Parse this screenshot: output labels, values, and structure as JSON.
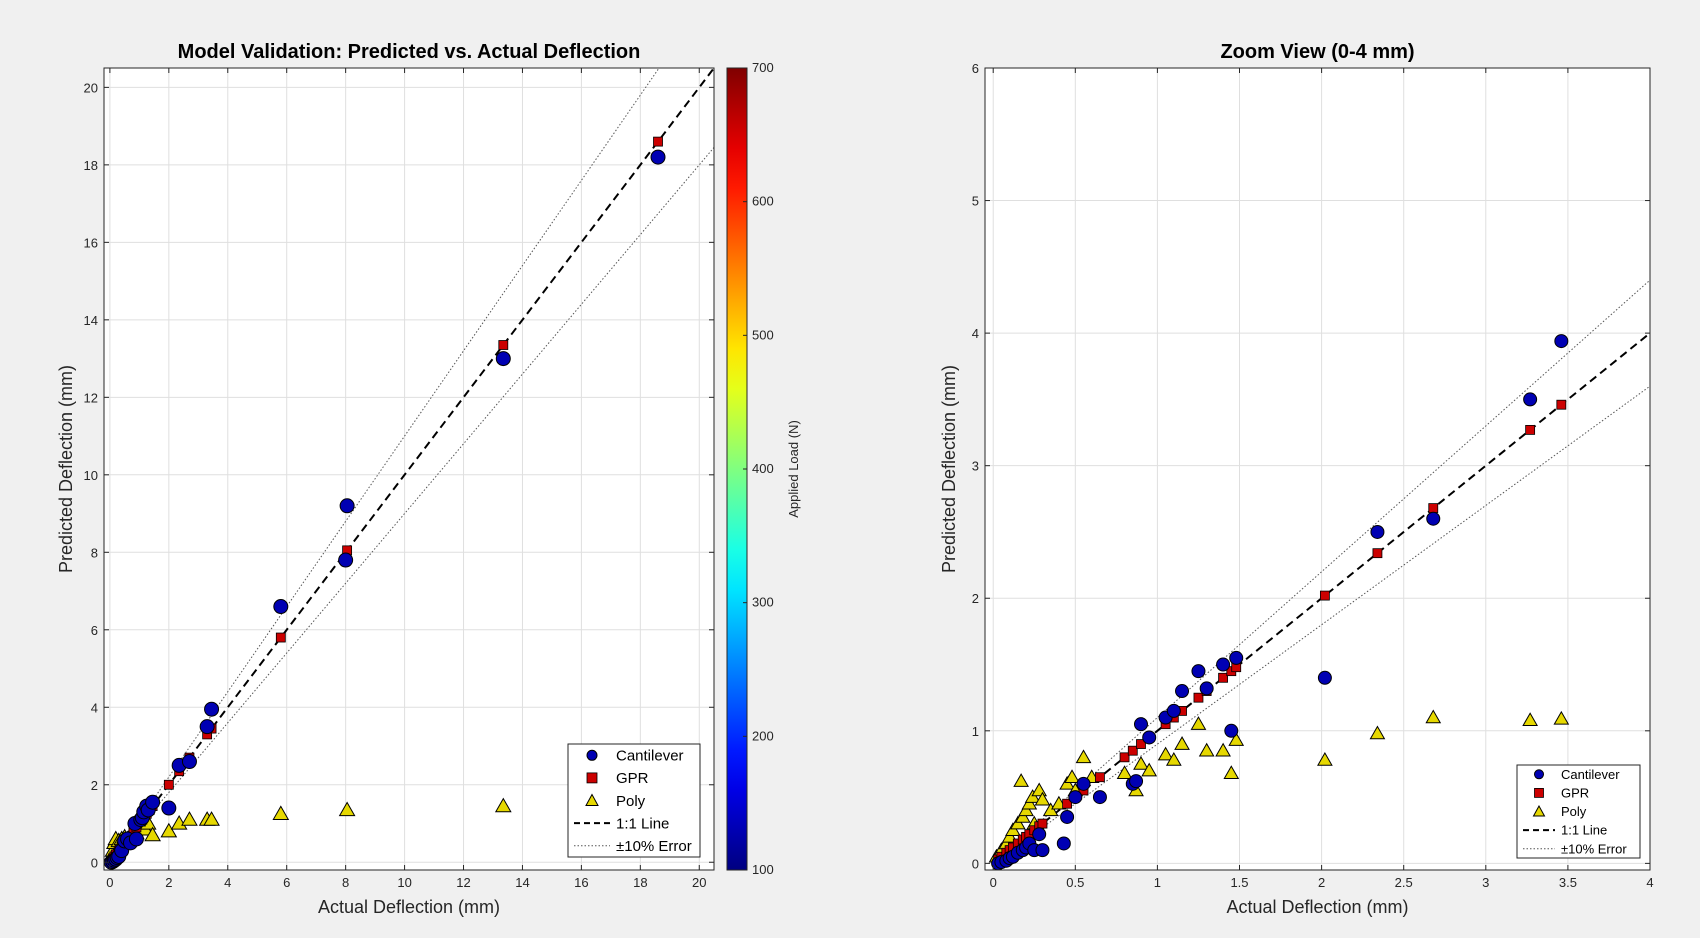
{
  "colors": {
    "figure_bg": "#f0f0f0",
    "axes_bg": "#ffffff",
    "grid": "#dfdfdf",
    "cantilever": "#0000b3",
    "gpr": "#cc0000",
    "poly": "#e6d800",
    "marker_edge": "#000000"
  },
  "colorbar": {
    "label": "Applied Load (N)",
    "ticks": [
      "100",
      "200",
      "300",
      "400",
      "500",
      "600",
      "700"
    ]
  },
  "chart_data": [
    {
      "type": "scatter",
      "title": "Model Validation: Predicted vs. Actual Deflection",
      "xlabel": "Actual Deflection (mm)",
      "ylabel": "Predicted Deflection (mm)",
      "xlim": [
        -0.2,
        20.5
      ],
      "ylim": [
        -0.2,
        20.5
      ],
      "xticks": [
        0,
        2,
        4,
        6,
        8,
        10,
        12,
        14,
        16,
        18,
        20
      ],
      "yticks": [
        0,
        2,
        4,
        6,
        8,
        10,
        12,
        14,
        16,
        18,
        20
      ],
      "grid": true,
      "legend_position": "bottom-right",
      "legend_entries": [
        "Cantilever",
        "GPR",
        "Poly",
        "1:1 Line",
        "±10% Error"
      ],
      "series": [
        {
          "name": "Cantilever",
          "marker": "circle",
          "x": [
            0.05,
            0.1,
            0.15,
            0.2,
            0.25,
            0.3,
            0.4,
            0.5,
            0.6,
            0.7,
            0.85,
            0.9,
            1.05,
            1.1,
            1.15,
            1.25,
            1.3,
            1.45,
            2.0,
            2.35,
            2.7,
            3.3,
            3.45,
            5.8,
            8.0,
            8.05,
            13.35,
            18.6
          ],
          "y": [
            0.0,
            0.02,
            0.05,
            0.08,
            0.12,
            0.15,
            0.3,
            0.55,
            0.6,
            0.5,
            1.0,
            0.6,
            1.1,
            1.15,
            1.3,
            1.45,
            1.35,
            1.55,
            1.4,
            2.5,
            2.6,
            3.5,
            3.95,
            6.6,
            7.8,
            9.2,
            13.0,
            18.2
          ]
        },
        {
          "name": "GPR",
          "marker": "square",
          "x": [
            0.05,
            0.1,
            0.15,
            0.2,
            0.3,
            0.4,
            0.5,
            0.6,
            0.8,
            0.9,
            1.05,
            1.1,
            1.25,
            1.35,
            1.45,
            2.0,
            2.35,
            2.7,
            3.3,
            3.45,
            5.8,
            8.05,
            13.35,
            18.6
          ],
          "y": [
            0.05,
            0.1,
            0.15,
            0.2,
            0.3,
            0.4,
            0.5,
            0.6,
            0.8,
            0.9,
            1.05,
            1.1,
            1.25,
            1.35,
            1.45,
            2.0,
            2.35,
            2.7,
            3.3,
            3.45,
            5.8,
            8.05,
            13.35,
            18.6
          ]
        },
        {
          "name": "Poly",
          "marker": "triangle",
          "x": [
            0.05,
            0.1,
            0.15,
            0.2,
            0.25,
            0.3,
            0.35,
            0.4,
            0.5,
            0.6,
            0.7,
            0.8,
            0.9,
            1.0,
            1.1,
            1.2,
            1.3,
            1.45,
            2.0,
            2.35,
            2.7,
            3.3,
            3.45,
            5.8,
            8.05,
            13.35
          ],
          "y": [
            0.1,
            0.3,
            0.5,
            0.6,
            0.3,
            0.55,
            0.45,
            0.6,
            0.65,
            0.6,
            0.7,
            0.7,
            0.75,
            0.85,
            0.9,
            0.85,
            1.0,
            0.7,
            0.8,
            1.0,
            1.1,
            1.1,
            1.1,
            1.25,
            1.35,
            1.45
          ]
        }
      ]
    },
    {
      "type": "scatter",
      "title": "Zoom View (0-4 mm)",
      "xlabel": "Actual Deflection (mm)",
      "ylabel": "Predicted Deflection (mm)",
      "xlim": [
        -0.05,
        4
      ],
      "ylim": [
        -0.05,
        6
      ],
      "xticks": [
        0,
        0.5,
        1,
        1.5,
        2,
        2.5,
        3,
        3.5,
        4
      ],
      "yticks": [
        0,
        1,
        2,
        3,
        4,
        5,
        6
      ],
      "grid": true,
      "legend_position": "bottom-right",
      "legend_entries": [
        "Cantilever",
        "GPR",
        "Poly",
        "1:1 Line",
        "±10% Error"
      ],
      "series": [
        {
          "name": "Cantilever",
          "marker": "circle",
          "x": [
            0.03,
            0.05,
            0.08,
            0.1,
            0.12,
            0.15,
            0.18,
            0.2,
            0.22,
            0.25,
            0.28,
            0.3,
            0.43,
            0.45,
            0.5,
            0.55,
            0.65,
            0.85,
            0.87,
            0.9,
            0.95,
            1.05,
            1.1,
            1.15,
            1.25,
            1.3,
            1.4,
            1.45,
            1.48,
            2.02,
            2.34,
            2.68,
            3.27,
            3.46
          ],
          "y": [
            0.0,
            0.01,
            0.02,
            0.04,
            0.05,
            0.08,
            0.1,
            0.12,
            0.15,
            0.1,
            0.22,
            0.1,
            0.15,
            0.35,
            0.5,
            0.6,
            0.5,
            0.6,
            0.62,
            1.05,
            0.95,
            1.1,
            1.15,
            1.3,
            1.45,
            1.32,
            1.5,
            1.0,
            1.55,
            1.4,
            2.5,
            2.6,
            3.5,
            3.94
          ]
        },
        {
          "name": "GPR",
          "marker": "square",
          "x": [
            0.03,
            0.05,
            0.08,
            0.1,
            0.12,
            0.15,
            0.18,
            0.2,
            0.22,
            0.25,
            0.28,
            0.3,
            0.45,
            0.55,
            0.65,
            0.8,
            0.85,
            0.9,
            1.05,
            1.1,
            1.15,
            1.25,
            1.3,
            1.4,
            1.45,
            1.48,
            2.02,
            2.34,
            2.68,
            3.27,
            3.46
          ],
          "y": [
            0.03,
            0.05,
            0.08,
            0.1,
            0.12,
            0.15,
            0.18,
            0.2,
            0.22,
            0.25,
            0.28,
            0.3,
            0.45,
            0.55,
            0.65,
            0.8,
            0.85,
            0.9,
            1.05,
            1.1,
            1.15,
            1.25,
            1.3,
            1.4,
            1.45,
            1.48,
            2.02,
            2.34,
            2.68,
            3.27,
            3.46
          ],
          "c_note": ""
        },
        {
          "name": "Poly",
          "marker": "triangle",
          "x": [
            0.02,
            0.05,
            0.08,
            0.1,
            0.12,
            0.15,
            0.17,
            0.18,
            0.2,
            0.22,
            0.24,
            0.25,
            0.28,
            0.3,
            0.35,
            0.4,
            0.45,
            0.48,
            0.5,
            0.55,
            0.6,
            0.8,
            0.87,
            0.9,
            0.95,
            1.05,
            1.1,
            1.15,
            1.25,
            1.3,
            1.4,
            1.45,
            1.48,
            2.02,
            2.34,
            2.68,
            3.27,
            3.46
          ],
          "y": [
            0.05,
            0.1,
            0.15,
            0.2,
            0.25,
            0.3,
            0.62,
            0.35,
            0.4,
            0.45,
            0.5,
            0.3,
            0.55,
            0.48,
            0.4,
            0.45,
            0.6,
            0.65,
            0.55,
            0.8,
            0.65,
            0.68,
            0.55,
            0.75,
            0.7,
            0.82,
            0.78,
            0.9,
            1.05,
            0.85,
            0.85,
            0.68,
            0.93,
            0.78,
            0.98,
            1.1,
            1.08,
            1.09
          ]
        }
      ]
    }
  ]
}
